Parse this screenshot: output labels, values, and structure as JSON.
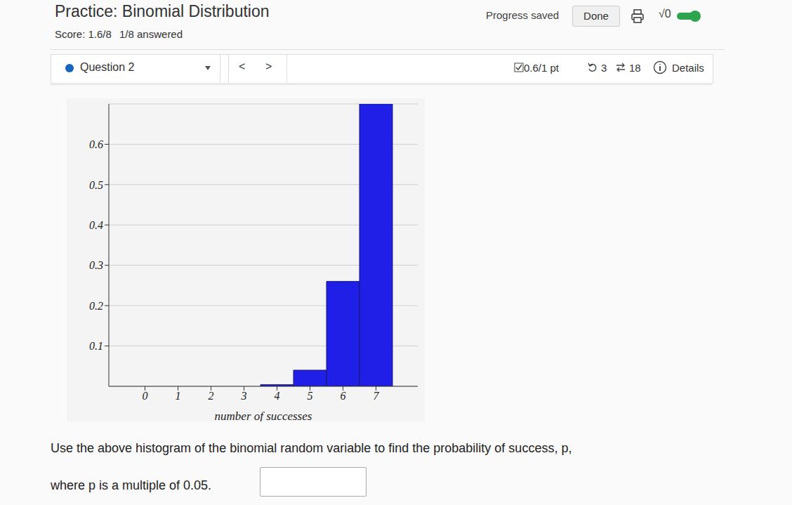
{
  "header": {
    "title": "Practice: Binomial Distribution",
    "status": "Progress saved",
    "button": "Done",
    "toggle_label": "√0"
  },
  "score": {
    "score": "Score: 1.6/8",
    "answered": "1/8 answered"
  },
  "question_bar": {
    "label": "Question 2",
    "prev": "<",
    "next": ">",
    "points": "0.6/1 pt",
    "retries": "3",
    "versions": "18",
    "details": "Details"
  },
  "chart_data": {
    "type": "bar",
    "categories": [
      "0",
      "1",
      "2",
      "3",
      "4",
      "5",
      "6",
      "7"
    ],
    "values": [
      0,
      0,
      0,
      0,
      0.004,
      0.04,
      0.26,
      0.7
    ],
    "color": "#1f1fe8",
    "ylim": [
      0,
      0.7
    ],
    "yticks": [
      0.1,
      0.2,
      0.3,
      0.4,
      0.5,
      0.6
    ],
    "grid": true,
    "xlabel": "number of successes"
  },
  "question": {
    "line1": "Use the above histogram of the binomial random variable to find the probability of success, p,",
    "line2": "where p is a multiple of 0.05."
  }
}
